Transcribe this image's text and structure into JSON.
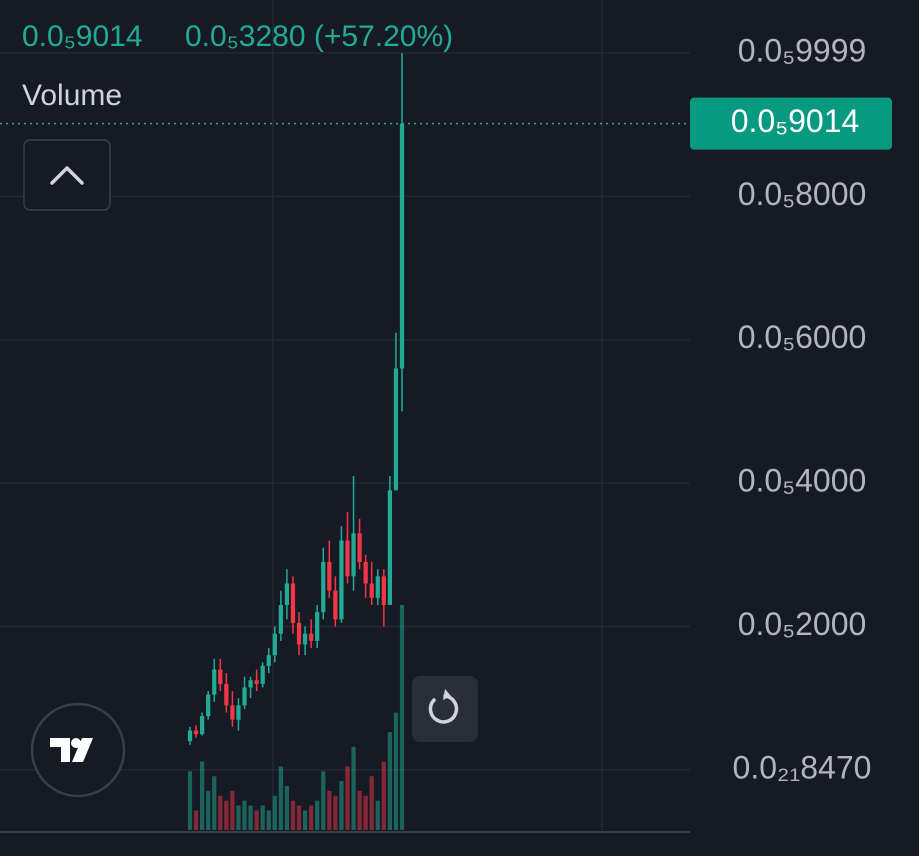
{
  "chart_data": {
    "type": "candlestick",
    "header_price": "0.0₅9014",
    "header_change": "0.0₅3280 (+57.20%)",
    "volume_label": "Volume",
    "price_line": {
      "value": 9.014e-06,
      "label": "0.0₅9014"
    },
    "ylim": [
      -4.2e-07,
      1.046e-05
    ],
    "yticks": [
      {
        "value": 9.999e-06,
        "label": "0.0₅9999"
      },
      {
        "value": 8e-06,
        "label": "0.0₅8000"
      },
      {
        "value": 6e-06,
        "label": "0.0₅6000"
      },
      {
        "value": 4e-06,
        "label": "0.0₅4000"
      },
      {
        "value": 2e-06,
        "label": "0.0₅2000"
      },
      {
        "value": 8.47e-22,
        "label": "0.0₂₁8470"
      }
    ],
    "grid": true,
    "up_color": "#22ab94",
    "down_color": "#f23645",
    "open": [
      4e-07,
      5.5e-07,
      5e-07,
      7.5e-07,
      1.05e-06,
      1.4e-06,
      1.2e-06,
      9e-07,
      7e-07,
      9e-07,
      1.15e-06,
      1.25e-06,
      1.2e-06,
      1.45e-06,
      1.6e-06,
      1.9e-06,
      2.3e-06,
      2.6e-06,
      2.05e-06,
      1.75e-06,
      1.9e-06,
      1.8e-06,
      2.2e-06,
      2.9e-06,
      2.5e-06,
      2.1e-06,
      3.2e-06,
      2.7e-06,
      3.3e-06,
      2.9e-06,
      2.6e-06,
      2.4e-06,
      2.7e-06,
      2.3e-06,
      3.9e-06,
      5.6e-06
    ],
    "high": [
      6e-07,
      6.2e-07,
      8e-07,
      1.1e-06,
      1.55e-06,
      1.55e-06,
      1.35e-06,
      1.1e-06,
      1e-06,
      1.3e-06,
      1.3e-06,
      1.4e-06,
      1.5e-06,
      1.7e-06,
      2e-06,
      2.5e-06,
      2.8e-06,
      2.7e-06,
      2.2e-06,
      2e-06,
      2.1e-06,
      2.3e-06,
      3.1e-06,
      3.2e-06,
      2.7e-06,
      3.4e-06,
      3.6e-06,
      4.1e-06,
      3.5e-06,
      3e-06,
      2.9e-06,
      2.8e-06,
      2.8e-06,
      4.1e-06,
      6.1e-06,
      9.999e-06
    ],
    "low": [
      3.5e-07,
      4.5e-07,
      4.8e-07,
      7e-07,
      9.5e-07,
      1.1e-06,
      8e-07,
      6e-07,
      5.5e-07,
      8.5e-07,
      1e-06,
      1.1e-06,
      1.15e-06,
      1.35e-06,
      1.5e-06,
      1.8e-06,
      2.1e-06,
      1.9e-06,
      1.6e-06,
      1.6e-06,
      1.7e-06,
      1.7e-06,
      2.1e-06,
      2.4e-06,
      2e-06,
      2.05e-06,
      2.6e-06,
      2.5e-06,
      2.8e-06,
      2.4e-06,
      2.3e-06,
      2.3e-06,
      2e-06,
      2.3e-06,
      3.9e-06,
      5e-06
    ],
    "close": [
      5.5e-07,
      5e-07,
      7.5e-07,
      1.05e-06,
      1.4e-06,
      1.2e-06,
      9e-07,
      7e-07,
      9e-07,
      1.15e-06,
      1.25e-06,
      1.2e-06,
      1.45e-06,
      1.6e-06,
      1.9e-06,
      2.3e-06,
      2.6e-06,
      2.05e-06,
      1.75e-06,
      1.9e-06,
      1.8e-06,
      2.2e-06,
      2.9e-06,
      2.5e-06,
      2.1e-06,
      3.2e-06,
      2.7e-06,
      3.3e-06,
      2.9e-06,
      2.6e-06,
      2.4e-06,
      2.7e-06,
      2.3e-06,
      3.9e-06,
      5.6e-06,
      9.014e-06
    ],
    "volume": [
      60,
      20,
      70,
      40,
      55,
      35,
      30,
      40,
      25,
      30,
      25,
      20,
      25,
      20,
      35,
      65,
      45,
      30,
      25,
      20,
      25,
      30,
      60,
      40,
      35,
      50,
      65,
      85,
      40,
      35,
      55,
      30,
      70,
      100,
      120,
      230
    ]
  }
}
